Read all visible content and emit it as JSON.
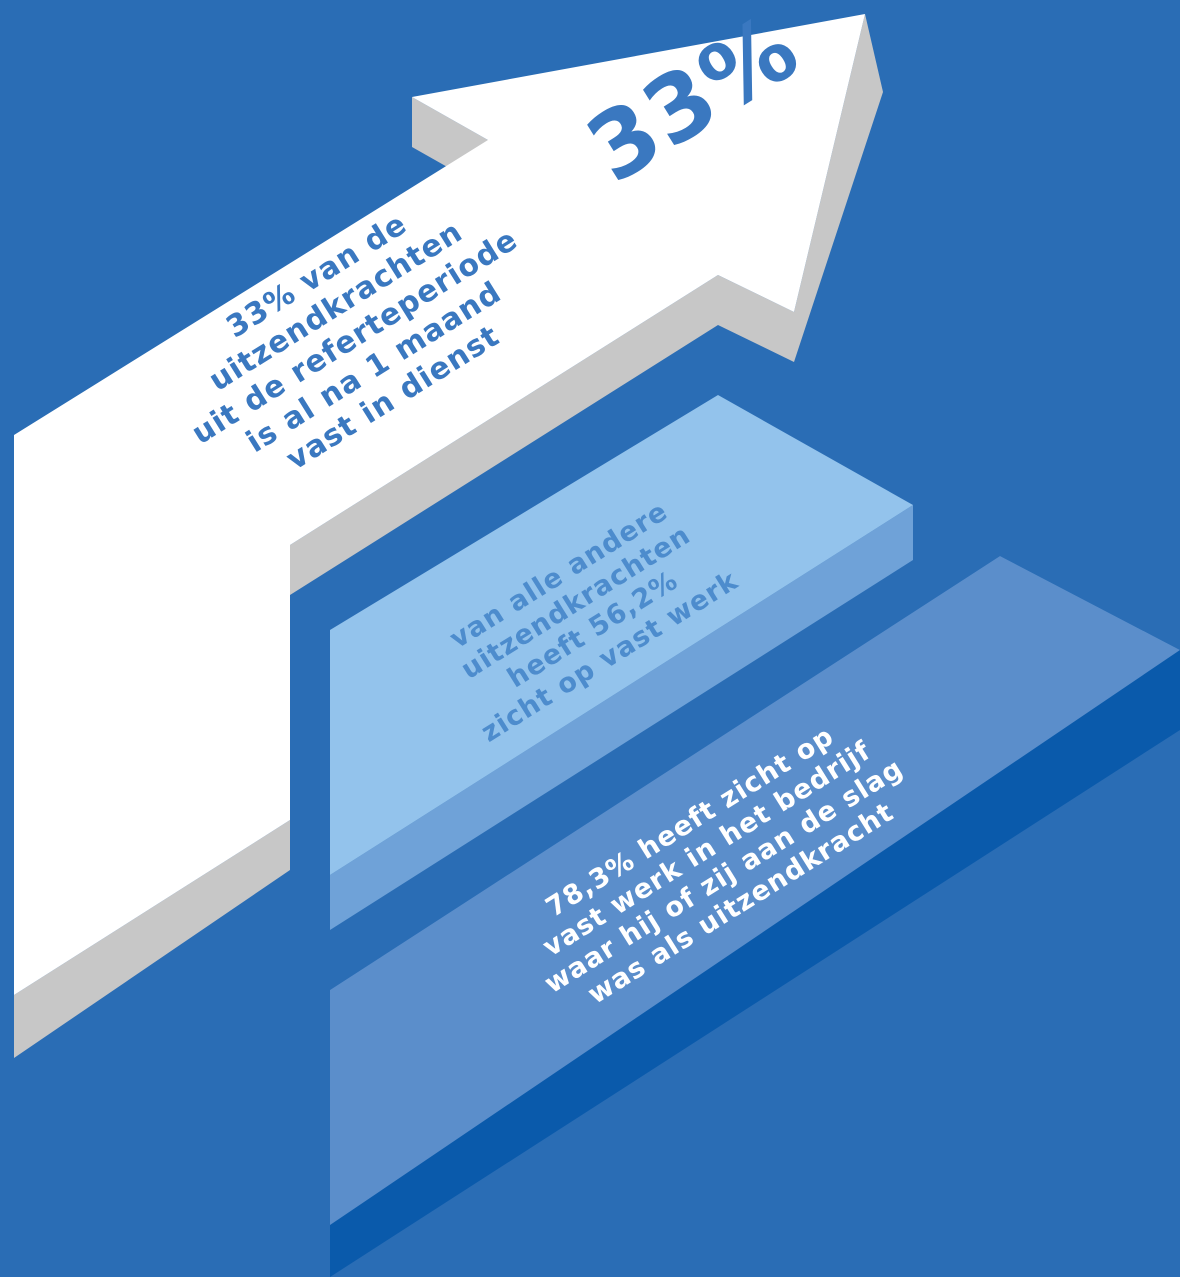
{
  "arrow": {
    "big_label": "33%",
    "lines": [
      "33% van de",
      "uitzendkrachten",
      "uit de referteperiode",
      "is al na 1 maand",
      "vast in dienst"
    ]
  },
  "middle_step": {
    "lines": [
      "van alle andere",
      "uitzendkrachten",
      "heeft 56,2%",
      "zicht op vast werk"
    ]
  },
  "bottom_step": {
    "lines": [
      "78,3% heeft zicht op",
      "vast werk in het bedrijf",
      "waar hij of zij aan de slag",
      "was als uitzendkracht"
    ]
  },
  "colors": {
    "background": "#2a6db5",
    "arrow_face": "#ffffff",
    "arrow_side": "#c7c7c7",
    "middle_top": "#93c3ec",
    "middle_side": "#6fa2d8",
    "bottom_top": "#5b8ecb",
    "bottom_side": "#0a5aab"
  }
}
